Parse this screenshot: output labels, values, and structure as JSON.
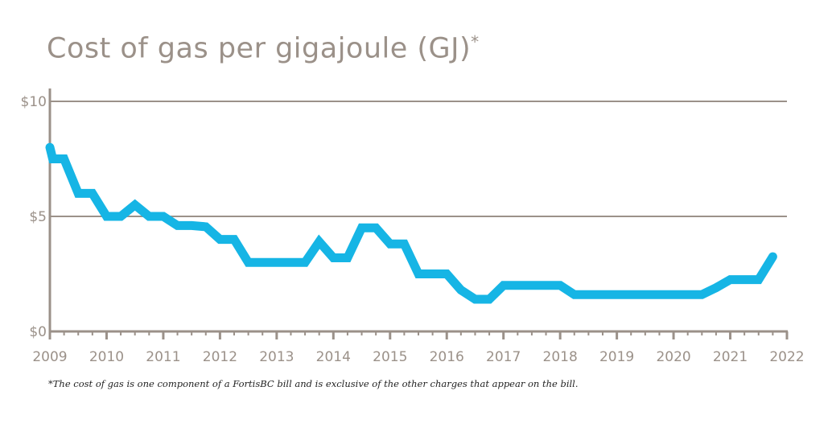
{
  "chart_data": {
    "type": "line",
    "title": "Cost of gas per gigajoule (GJ)",
    "title_marker": "*",
    "xlabel": "",
    "ylabel": "",
    "xlim": [
      2009,
      2022
    ],
    "ylim": [
      0,
      10
    ],
    "x_ticks": [
      "2009",
      "2010",
      "2011",
      "2012",
      "2013",
      "2014",
      "2015",
      "2016",
      "2017",
      "2018",
      "2019",
      "2020",
      "2021",
      "2022"
    ],
    "y_ticks": [
      {
        "value": 0,
        "label": "$0"
      },
      {
        "value": 5,
        "label": "$5"
      },
      {
        "value": 10,
        "label": "$10"
      }
    ],
    "grid": "horizontal",
    "series": [
      {
        "color": "#16b5e5",
        "x": [
          2009.0,
          2009.05,
          2009.25,
          2009.5,
          2009.75,
          2010.0,
          2010.25,
          2010.5,
          2010.75,
          2011.0,
          2011.25,
          2011.5,
          2011.75,
          2012.0,
          2012.25,
          2012.5,
          2012.75,
          2013.0,
          2013.25,
          2013.5,
          2013.75,
          2014.0,
          2014.25,
          2014.5,
          2014.75,
          2015.0,
          2015.25,
          2015.5,
          2015.75,
          2016.0,
          2016.25,
          2016.5,
          2016.75,
          2017.0,
          2017.25,
          2017.5,
          2017.75,
          2018.0,
          2018.25,
          2018.5,
          2018.75,
          2019.0,
          2019.25,
          2019.5,
          2019.75,
          2020.0,
          2020.25,
          2020.5,
          2020.75,
          2021.0,
          2021.25,
          2021.5,
          2021.75
        ],
        "y": [
          8.0,
          7.5,
          7.5,
          6.0,
          6.0,
          5.0,
          5.0,
          5.5,
          5.0,
          5.0,
          4.6,
          4.6,
          4.55,
          4.0,
          4.0,
          3.0,
          3.0,
          3.0,
          3.0,
          3.0,
          3.9,
          3.2,
          3.2,
          4.5,
          4.5,
          3.8,
          3.8,
          2.5,
          2.5,
          2.5,
          1.8,
          1.4,
          1.4,
          2.0,
          2.0,
          2.0,
          2.0,
          2.0,
          1.6,
          1.6,
          1.6,
          1.6,
          1.6,
          1.6,
          1.6,
          1.6,
          1.6,
          1.6,
          1.9,
          2.25,
          2.25,
          2.25,
          3.25
        ]
      }
    ]
  },
  "footnote": "*The cost of gas is one component of a FortisBC bill and is exclusive of the other charges that appear on the bill."
}
